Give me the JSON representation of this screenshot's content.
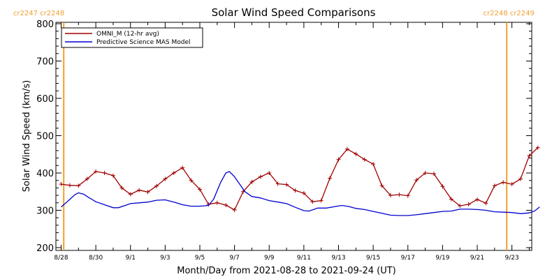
{
  "chart_data": {
    "type": "line",
    "title": "Solar Wind Speed Comparisons",
    "xlabel": "Month/Day from 2021-08-28 to 2021-09-24 (UT)",
    "ylabel": "Solar Wind Speed (km/s)",
    "ylim": [
      200,
      800
    ],
    "xlim": [
      0,
      26.6
    ],
    "yticks": [
      200,
      300,
      400,
      500,
      600,
      700,
      800
    ],
    "xticks": [
      {
        "x": 0,
        "label": "8/28"
      },
      {
        "x": 2,
        "label": "8/30"
      },
      {
        "x": 4,
        "label": "9/1"
      },
      {
        "x": 6,
        "label": "9/3"
      },
      {
        "x": 8,
        "label": "9/5"
      },
      {
        "x": 10,
        "label": "9/7"
      },
      {
        "x": 12,
        "label": "9/9"
      },
      {
        "x": 14,
        "label": "9/11"
      },
      {
        "x": 16,
        "label": "9/13"
      },
      {
        "x": 18,
        "label": "9/15"
      },
      {
        "x": 20,
        "label": "9/17"
      },
      {
        "x": 22,
        "label": "9/19"
      },
      {
        "x": 24,
        "label": "9/21"
      },
      {
        "x": 26,
        "label": "9/23"
      }
    ],
    "carrington_markers": [
      {
        "x": 0.15,
        "label": "cr2247 cr2248",
        "align": "right"
      },
      {
        "x": 25.7,
        "label": "cr2248 cr2249",
        "align": "left"
      }
    ],
    "legend_position": "top-left",
    "series": [
      {
        "name": "OMNI_M (12-hr avg)",
        "color": "#a00000",
        "markers": "plus",
        "points": [
          [
            0.0,
            370
          ],
          [
            0.5,
            367
          ],
          [
            1.0,
            366
          ],
          [
            1.5,
            384
          ],
          [
            2.0,
            404
          ],
          [
            2.5,
            400
          ],
          [
            3.0,
            393
          ],
          [
            3.5,
            360
          ],
          [
            4.0,
            343
          ],
          [
            4.5,
            354
          ],
          [
            5.0,
            349
          ],
          [
            5.5,
            365
          ],
          [
            6.0,
            384
          ],
          [
            6.5,
            400
          ],
          [
            7.0,
            414
          ],
          [
            7.5,
            380
          ],
          [
            8.0,
            356
          ],
          [
            8.5,
            316
          ],
          [
            9.0,
            320
          ],
          [
            9.5,
            314
          ],
          [
            10.0,
            301
          ],
          [
            10.5,
            350
          ],
          [
            11.0,
            376
          ],
          [
            11.5,
            390
          ],
          [
            12.0,
            400
          ],
          [
            12.5,
            371
          ],
          [
            13.0,
            369
          ],
          [
            13.5,
            353
          ],
          [
            14.0,
            346
          ],
          [
            14.5,
            323
          ],
          [
            15.0,
            326
          ],
          [
            15.5,
            386
          ],
          [
            16.0,
            436
          ],
          [
            16.5,
            464
          ],
          [
            17.0,
            451
          ],
          [
            17.5,
            436
          ],
          [
            18.0,
            424
          ],
          [
            18.5,
            366
          ],
          [
            19.0,
            340
          ],
          [
            19.5,
            342
          ],
          [
            20.0,
            339
          ],
          [
            20.5,
            381
          ],
          [
            21.0,
            400
          ],
          [
            21.5,
            398
          ],
          [
            22.0,
            364
          ],
          [
            22.5,
            330
          ],
          [
            23.0,
            312
          ],
          [
            23.5,
            316
          ],
          [
            24.0,
            329
          ],
          [
            24.5,
            319
          ],
          [
            25.0,
            366
          ],
          [
            25.5,
            375
          ],
          [
            26.0,
            370
          ],
          [
            26.5,
            384
          ],
          [
            27.0,
            446
          ],
          [
            27.5,
            468
          ]
        ]
      },
      {
        "name": "Predictive Science MAS Model",
        "color": "#0000d0",
        "markers": "none",
        "points": [
          [
            0.0,
            309
          ],
          [
            0.4,
            325
          ],
          [
            0.8,
            342
          ],
          [
            1.0,
            347
          ],
          [
            1.3,
            343
          ],
          [
            1.6,
            334
          ],
          [
            2.0,
            323
          ],
          [
            2.5,
            315
          ],
          [
            3.0,
            307
          ],
          [
            3.3,
            307
          ],
          [
            3.7,
            313
          ],
          [
            4.0,
            318
          ],
          [
            4.5,
            320
          ],
          [
            5.0,
            322
          ],
          [
            5.5,
            327
          ],
          [
            6.0,
            328
          ],
          [
            6.5,
            322
          ],
          [
            7.0,
            315
          ],
          [
            7.5,
            311
          ],
          [
            8.0,
            311
          ],
          [
            8.5,
            313
          ],
          [
            8.8,
            330
          ],
          [
            9.2,
            375
          ],
          [
            9.5,
            400
          ],
          [
            9.7,
            404
          ],
          [
            10.0,
            390
          ],
          [
            10.3,
            370
          ],
          [
            10.6,
            350
          ],
          [
            11.0,
            337
          ],
          [
            11.5,
            333
          ],
          [
            12.0,
            326
          ],
          [
            12.5,
            322
          ],
          [
            13.0,
            318
          ],
          [
            13.5,
            308
          ],
          [
            14.0,
            299
          ],
          [
            14.3,
            298
          ],
          [
            14.8,
            306
          ],
          [
            15.3,
            306
          ],
          [
            15.8,
            310
          ],
          [
            16.2,
            313
          ],
          [
            16.6,
            310
          ],
          [
            17.0,
            305
          ],
          [
            17.5,
            302
          ],
          [
            18.0,
            297
          ],
          [
            18.5,
            292
          ],
          [
            19.0,
            287
          ],
          [
            19.5,
            286
          ],
          [
            20.0,
            286
          ],
          [
            20.5,
            288
          ],
          [
            21.0,
            291
          ],
          [
            21.5,
            294
          ],
          [
            22.0,
            297
          ],
          [
            22.5,
            298
          ],
          [
            23.0,
            303
          ],
          [
            23.5,
            303
          ],
          [
            24.0,
            302
          ],
          [
            24.5,
            300
          ],
          [
            25.0,
            296
          ],
          [
            25.5,
            295
          ],
          [
            26.0,
            294
          ],
          [
            26.5,
            291
          ],
          [
            27.0,
            293
          ],
          [
            27.3,
            298
          ],
          [
            27.6,
            309
          ]
        ]
      }
    ]
  }
}
